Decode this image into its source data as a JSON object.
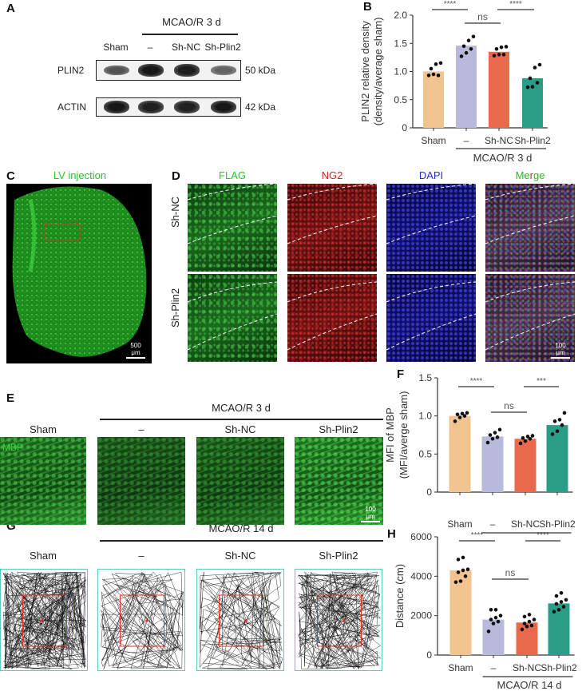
{
  "panels": {
    "A": "A",
    "B": "B",
    "C": "C",
    "D": "D",
    "E": "E",
    "F": "F",
    "G": "G",
    "H": "H"
  },
  "panel_a": {
    "group_header": "MCAO/R 3 d",
    "lanes": [
      "Sham",
      "–",
      "Sh-NC",
      "Sh-Plin2"
    ],
    "rows": [
      {
        "protein": "PLIN2",
        "mw": "50 kDa",
        "intensity": [
          0.55,
          0.95,
          0.92,
          0.45
        ]
      },
      {
        "protein": "ACTIN",
        "mw": "42 kDa",
        "intensity": [
          0.95,
          0.9,
          0.9,
          0.95
        ]
      }
    ]
  },
  "panel_c": {
    "title": "LV injection",
    "scale": "500 μm"
  },
  "panel_d": {
    "channels": [
      {
        "label": "FLAG",
        "color": "#22cc22"
      },
      {
        "label": "NG2",
        "color": "#dd2222"
      },
      {
        "label": "DAPI",
        "color": "#2222dd"
      },
      {
        "label": "Merge",
        "color": "multi"
      }
    ],
    "merge_parts": [
      "Me",
      "r",
      "ge"
    ],
    "rows": [
      "Sh-NC",
      "Sh-Plin2"
    ],
    "scale": "100 μm"
  },
  "panel_e": {
    "group_header": "MCAO/R 3 d",
    "columns": [
      "Sham",
      "–",
      "Sh-NC",
      "Sh-Plin2"
    ],
    "stain": "MBP",
    "scale": "100 μm"
  },
  "panel_g": {
    "group_header": "MCAO/R 14 d",
    "columns": [
      "Sham",
      "–",
      "Sh-NC",
      "Sh-Plin2"
    ],
    "path_density": [
      1.0,
      0.35,
      0.3,
      0.65
    ]
  },
  "colors": {
    "sham": "#f1c38e",
    "neg": "#b9b9dc",
    "shnc": "#e9694c",
    "shplin2": "#2a9d87"
  },
  "chart_data": [
    {
      "id": "B",
      "type": "bar",
      "ylabel": "PLIN2 relative density",
      "ylabel2": "(density/average sham)",
      "categories": [
        "Sham",
        "–",
        "Sh-NC",
        "Sh-Plin2"
      ],
      "group_label": "MCAO/R 3 d",
      "ylim": [
        0,
        2.0
      ],
      "ticks": [
        "0",
        "0.5",
        "1.0",
        "1.5",
        "2.0"
      ],
      "tick_values": [
        0,
        0.5,
        1.0,
        1.5,
        2.0
      ],
      "values": [
        1.0,
        1.46,
        1.35,
        0.88
      ],
      "errors": [
        0.05,
        0.05,
        0.03,
        0.07
      ],
      "points": [
        [
          0.93,
          0.95,
          0.93,
          1.05,
          1.13,
          1.15
        ],
        [
          1.27,
          1.33,
          1.4,
          1.45,
          1.55,
          1.62
        ],
        [
          1.28,
          1.3,
          1.3,
          1.4,
          1.43,
          1.44
        ],
        [
          0.72,
          0.73,
          0.8,
          0.88,
          1.07,
          1.12
        ]
      ],
      "significance": [
        {
          "pair": [
            0,
            1
          ],
          "label": "****"
        },
        {
          "pair": [
            1,
            2
          ],
          "label": "ns"
        },
        {
          "pair": [
            2,
            3
          ],
          "label": "****"
        }
      ]
    },
    {
      "id": "F",
      "type": "bar",
      "ylabel": "MFI of MBP",
      "ylabel2": "(MFI/averge sham)",
      "categories": [
        "Sham",
        "–",
        "Sh-NC",
        "Sh-Plin2"
      ],
      "group_label": "MCAO/R 3 d",
      "ylim": [
        0,
        1.5
      ],
      "ticks": [
        "0",
        "0.5",
        "1.0",
        "1.5"
      ],
      "tick_values": [
        0,
        0.5,
        1.0,
        1.5
      ],
      "values": [
        1.0,
        0.73,
        0.7,
        0.88
      ],
      "errors": [
        0.02,
        0.03,
        0.02,
        0.04
      ],
      "points": [
        [
          0.93,
          0.98,
          1.0,
          1.02,
          1.03,
          1.04
        ],
        [
          0.65,
          0.7,
          0.72,
          0.75,
          0.78,
          0.82
        ],
        [
          0.64,
          0.67,
          0.7,
          0.71,
          0.73,
          0.74
        ],
        [
          0.76,
          0.8,
          0.88,
          0.93,
          0.95,
          1.04
        ]
      ],
      "significance": [
        {
          "pair": [
            0,
            1
          ],
          "label": "****"
        },
        {
          "pair": [
            1,
            2
          ],
          "label": "ns"
        },
        {
          "pair": [
            2,
            3
          ],
          "label": "***"
        }
      ]
    },
    {
      "id": "H",
      "type": "bar",
      "ylabel": "Distance (cm)",
      "ylabel2": "",
      "categories": [
        "Sham",
        "–",
        "Sh-NC",
        "Sh-Plin2"
      ],
      "group_label": "MCAO/R 14 d",
      "ylim": [
        0,
        6000
      ],
      "ticks": [
        "0",
        "2000",
        "4000",
        "6000"
      ],
      "tick_values": [
        0,
        2000,
        4000,
        6000
      ],
      "values": [
        4300,
        1800,
        1650,
        2620
      ],
      "errors": [
        180,
        130,
        110,
        120
      ],
      "points": [
        [
          3700,
          3750,
          4000,
          4200,
          4300,
          4350,
          4850,
          4950
        ],
        [
          1200,
          1600,
          1700,
          1800,
          1900,
          2000,
          2300,
          2300
        ],
        [
          1300,
          1450,
          1500,
          1600,
          1700,
          1800,
          1950,
          2050
        ],
        [
          2200,
          2300,
          2450,
          2600,
          2700,
          2800,
          3000,
          3150
        ]
      ],
      "significance": [
        {
          "pair": [
            0,
            1
          ],
          "label": "****"
        },
        {
          "pair": [
            1,
            2
          ],
          "label": "ns"
        },
        {
          "pair": [
            2,
            3
          ],
          "label": "****"
        }
      ]
    }
  ]
}
